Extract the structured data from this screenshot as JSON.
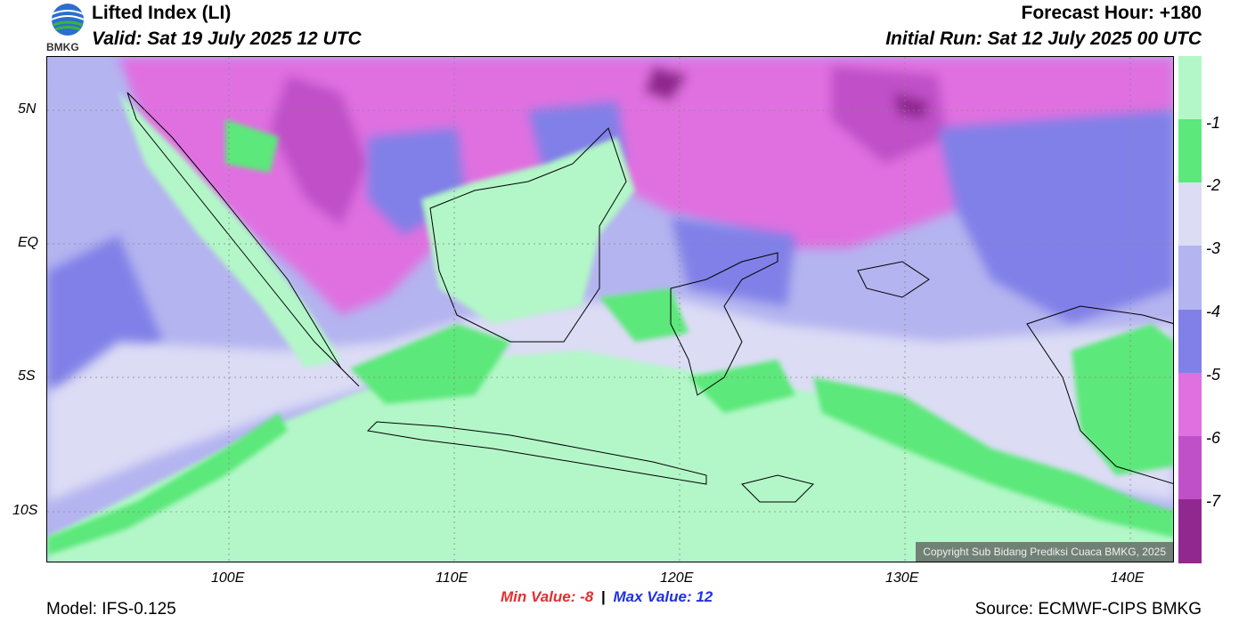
{
  "header": {
    "logo_text": "BMKG",
    "title": "Lifted Index (LI)",
    "valid": "Valid: Sat 19 July 2025 12 UTC",
    "forecast_hour": "Forecast Hour: +180",
    "initial_run": "Initial Run: Sat 12 July 2025 00 UTC"
  },
  "map": {
    "lat_labels": [
      "5N",
      "EQ",
      "5S",
      "10S"
    ],
    "lon_labels": [
      "100E",
      "110E",
      "120E",
      "130E",
      "140E"
    ],
    "copyright": "Copyright Sub Bidang Prediksi Cuaca BMKG, 2025"
  },
  "colorbar": {
    "labels": [
      "-1",
      "-2",
      "-3",
      "-4",
      "-5",
      "-6",
      "-7"
    ],
    "colors": [
      "#b3f7c8",
      "#5ce87a",
      "#dcdcf5",
      "#b4b4f0",
      "#8080e8",
      "#e070e0",
      "#c050c8",
      "#902890"
    ]
  },
  "stats": {
    "min_label": "Min Value:  -8",
    "separator": "|",
    "max_label": "Max Value:  12",
    "min_color": "#e03030",
    "max_color": "#2030e0"
  },
  "footer": {
    "model": "Model: IFS-0.125",
    "source": "Source: ECMWF-CIPS BMKG"
  }
}
